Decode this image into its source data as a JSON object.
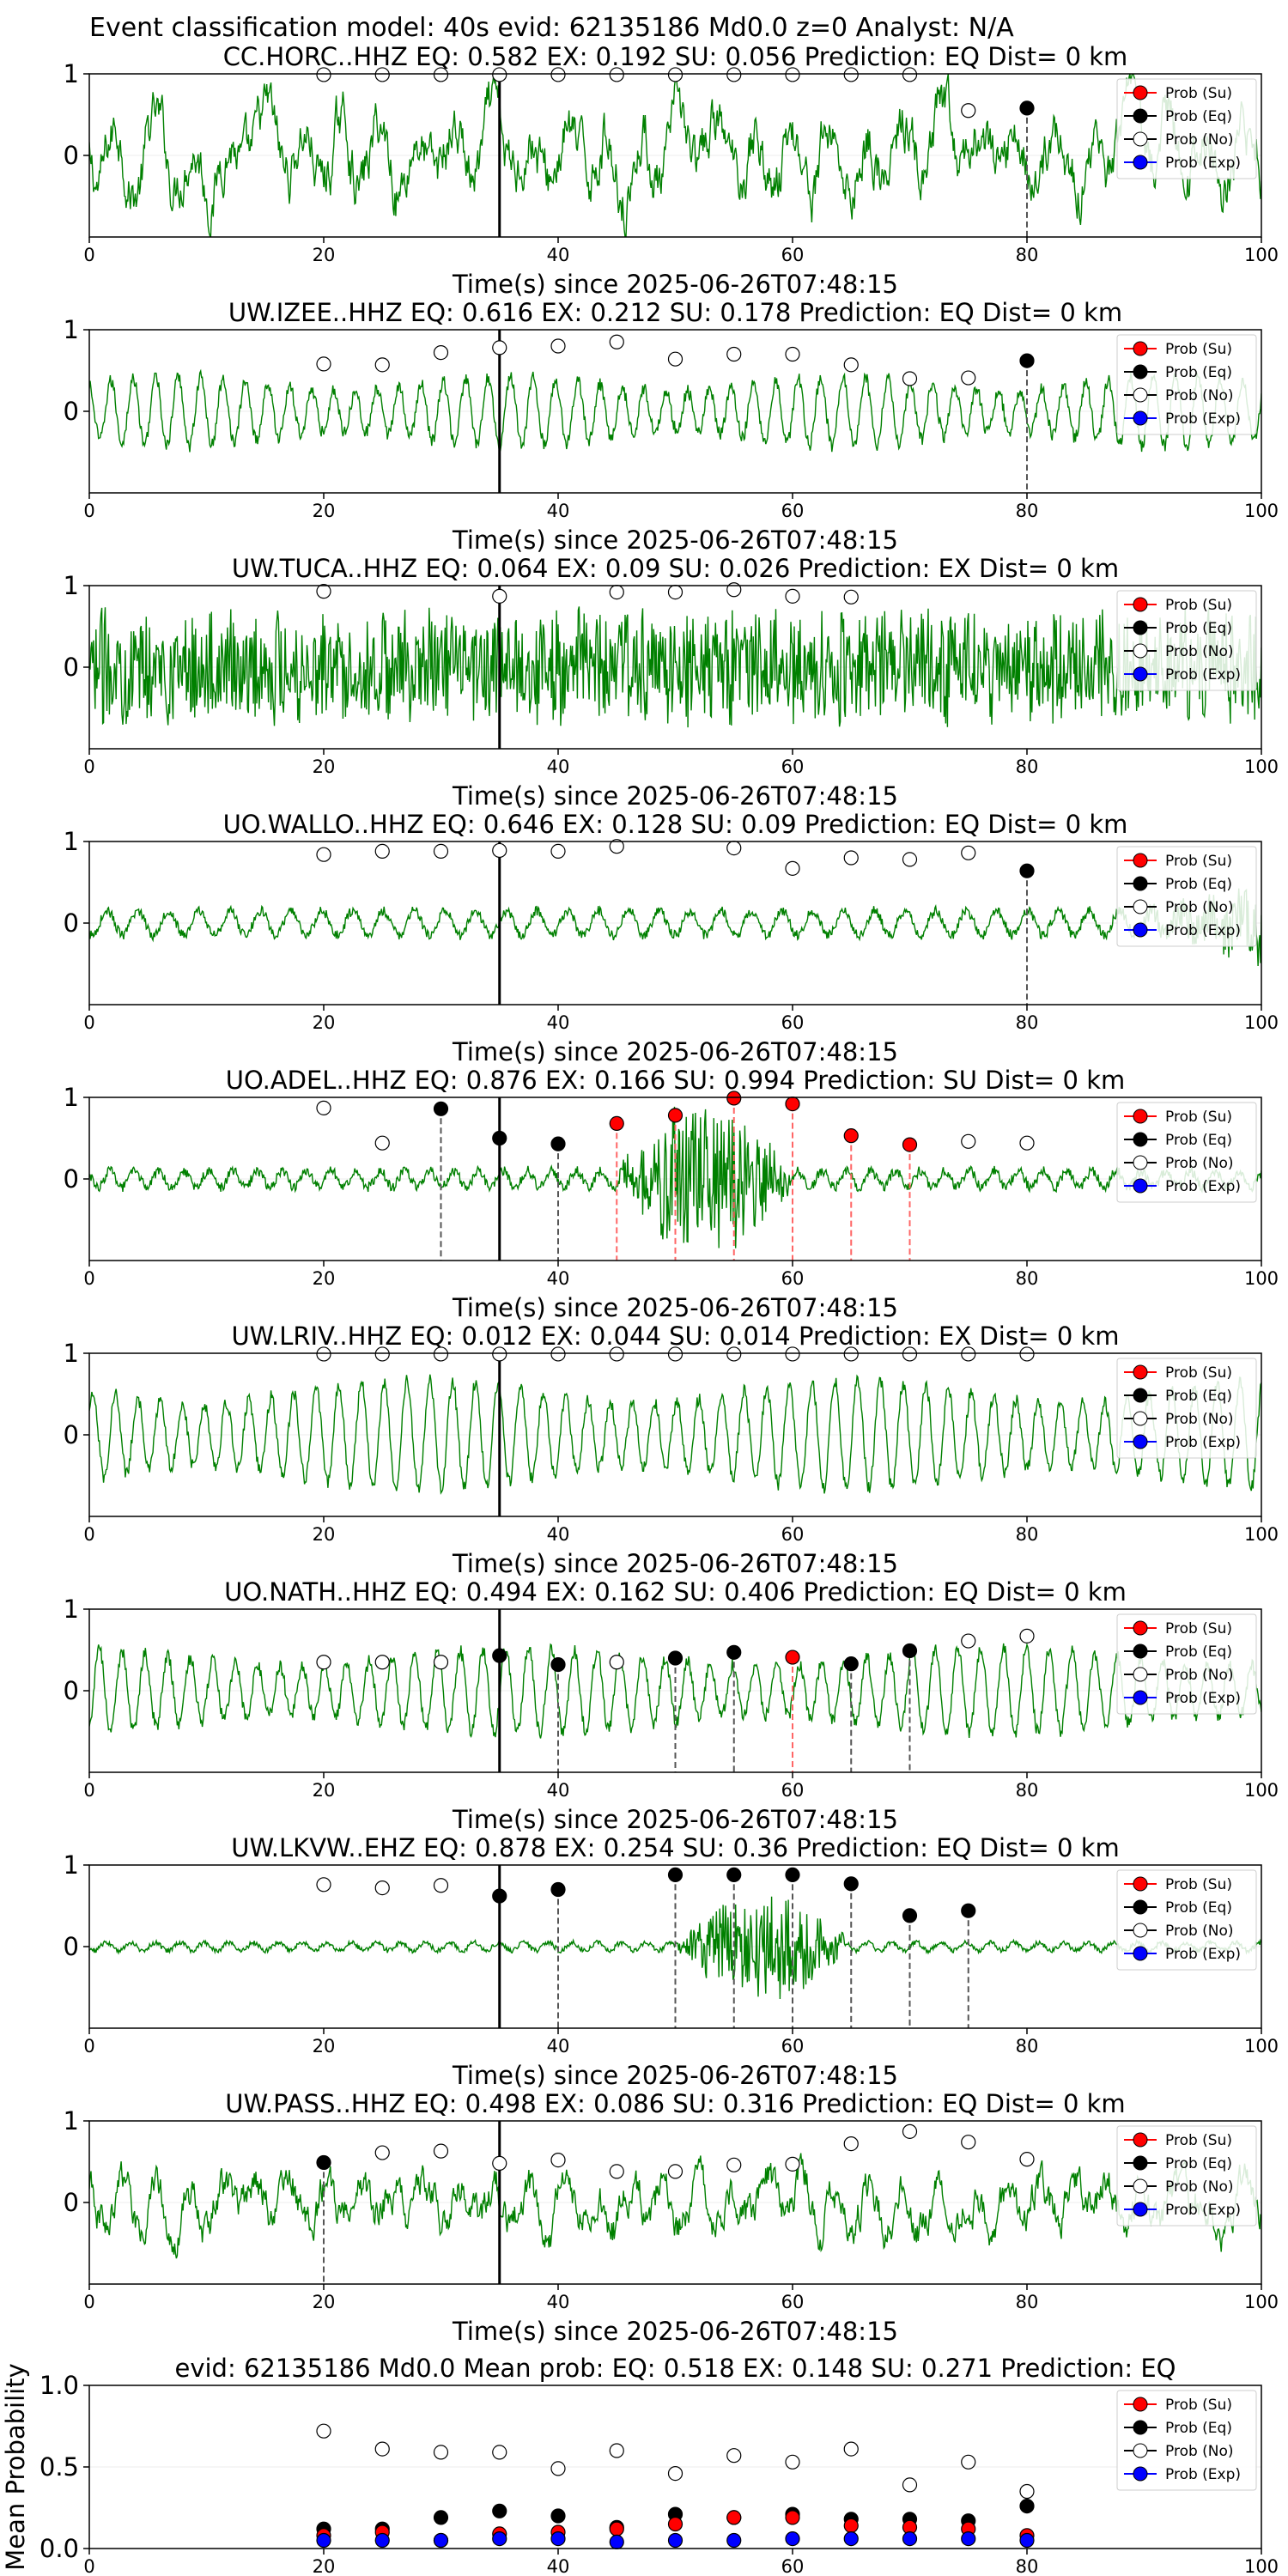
{
  "figure_title": "Event classification model: 40s evid: 62135186 Md0.0 z=0 Analyst: N/A",
  "colors": {
    "waveform": "#008000",
    "su": "#ff0000",
    "eq": "#000000",
    "no": "#ffffff",
    "exp": "#0000ff",
    "arrival_line": "#000000",
    "eq_tick": "#555555",
    "su_tick": "#ff6666"
  },
  "legend_labels": [
    "Prob (Su)",
    "Prob (Eq)",
    "Prob (No)",
    "Prob (Exp)"
  ],
  "chart_data": [
    {
      "type": "line",
      "title": "CC.HORC..HHZ   EQ: 0.582  EX: 0.192  SU: 0.056   Prediction: EQ    Dist= 0 km",
      "xlabel": "Time(s) since 2025-06-26T07:48:15",
      "xlim": [
        0,
        100
      ],
      "ylim": [
        -1,
        1
      ],
      "xticks": [
        0,
        20,
        40,
        60,
        80,
        100
      ],
      "yticks": [
        0,
        1
      ],
      "arrival_time": 35,
      "waveform": {
        "style": "noisy_low_freq",
        "amplitude": 0.55
      },
      "prob_no": [
        [
          20,
          0.99
        ],
        [
          25,
          0.99
        ],
        [
          30,
          0.99
        ],
        [
          35,
          0.99
        ],
        [
          40,
          0.99
        ],
        [
          45,
          0.99
        ],
        [
          50,
          0.99
        ],
        [
          55,
          0.99
        ],
        [
          60,
          0.99
        ],
        [
          65,
          0.99
        ],
        [
          70,
          0.99
        ],
        [
          75,
          0.55
        ]
      ],
      "prob_eq": [
        [
          80,
          0.58
        ]
      ],
      "prob_su": [],
      "legend_position": "upper right"
    },
    {
      "type": "line",
      "title": "UW.IZEE..HHZ   EQ: 0.616  EX: 0.212  SU: 0.178   Prediction: EQ    Dist= 0 km",
      "xlabel": "Time(s) since 2025-06-26T07:48:15",
      "xlim": [
        0,
        100
      ],
      "ylim": [
        -1,
        1
      ],
      "xticks": [
        0,
        20,
        40,
        60,
        80,
        100
      ],
      "yticks": [
        0,
        1
      ],
      "arrival_time": 35,
      "waveform": {
        "style": "oscillating",
        "amplitude": 0.45
      },
      "prob_no": [
        [
          20,
          0.58
        ],
        [
          25,
          0.57
        ],
        [
          30,
          0.72
        ],
        [
          35,
          0.78
        ],
        [
          40,
          0.8
        ],
        [
          45,
          0.85
        ],
        [
          50,
          0.64
        ],
        [
          55,
          0.7
        ],
        [
          60,
          0.7
        ],
        [
          65,
          0.57
        ],
        [
          70,
          0.4
        ],
        [
          75,
          0.41
        ]
      ],
      "prob_eq": [
        [
          80,
          0.62
        ]
      ],
      "prob_su": [],
      "legend_position": "upper right"
    },
    {
      "type": "line",
      "title": "UW.TUCA..HHZ   EQ: 0.064  EX: 0.09  SU: 0.026   Prediction: EX    Dist= 0 km",
      "xlabel": "Time(s) since 2025-06-26T07:48:15",
      "xlim": [
        0,
        100
      ],
      "ylim": [
        -1,
        1
      ],
      "xticks": [
        0,
        20,
        40,
        60,
        80,
        100
      ],
      "yticks": [
        0,
        1
      ],
      "arrival_time": 35,
      "waveform": {
        "style": "dense_noise",
        "amplitude": 0.75
      },
      "prob_no": [
        [
          20,
          0.93
        ],
        [
          35,
          0.87
        ],
        [
          45,
          0.92
        ],
        [
          50,
          0.92
        ],
        [
          55,
          0.95
        ],
        [
          60,
          0.87
        ],
        [
          65,
          0.86
        ]
      ],
      "prob_eq": [],
      "prob_su": [],
      "legend_position": "upper right"
    },
    {
      "type": "line",
      "title": "UO.WALLO..HHZ   EQ: 0.646  EX: 0.128  SU: 0.09   Prediction: EQ    Dist= 0 km",
      "xlabel": "Time(s) since 2025-06-26T07:48:15",
      "xlim": [
        0,
        100
      ],
      "ylim": [
        -1,
        1
      ],
      "xticks": [
        0,
        20,
        40,
        60,
        80,
        100
      ],
      "yticks": [
        0,
        1
      ],
      "arrival_time": 35,
      "waveform": {
        "style": "low_amp",
        "amplitude": 0.15
      },
      "prob_no": [
        [
          20,
          0.84
        ],
        [
          25,
          0.88
        ],
        [
          30,
          0.88
        ],
        [
          35,
          0.89
        ],
        [
          40,
          0.88
        ],
        [
          45,
          0.94
        ],
        [
          55,
          0.92
        ],
        [
          60,
          0.67
        ],
        [
          65,
          0.8
        ],
        [
          70,
          0.78
        ],
        [
          75,
          0.86
        ]
      ],
      "prob_eq": [
        [
          80,
          0.64
        ]
      ],
      "prob_su": [],
      "legend_position": "upper right"
    },
    {
      "type": "line",
      "title": "UO.ADEL..HHZ   EQ: 0.876  EX: 0.166  SU: 0.994   Prediction: SU    Dist= 0 km",
      "xlabel": "Time(s) since 2025-06-26T07:48:15",
      "xlim": [
        0,
        100
      ],
      "ylim": [
        -1,
        1
      ],
      "xticks": [
        0,
        20,
        40,
        60,
        80,
        100
      ],
      "yticks": [
        0,
        1
      ],
      "arrival_time": 35,
      "waveform": {
        "style": "burst",
        "amplitude": 0.1,
        "burst": [
          45,
          60,
          0.85
        ]
      },
      "prob_no": [
        [
          20,
          0.87
        ],
        [
          25,
          0.44
        ],
        [
          75,
          0.46
        ],
        [
          80,
          0.44
        ]
      ],
      "prob_eq": [
        [
          30,
          0.86
        ],
        [
          35,
          0.5
        ],
        [
          40,
          0.43
        ]
      ],
      "prob_su": [
        [
          45,
          0.68
        ],
        [
          50,
          0.78
        ],
        [
          55,
          0.99
        ],
        [
          60,
          0.92
        ],
        [
          65,
          0.53
        ],
        [
          70,
          0.42
        ]
      ],
      "legend_position": "upper right"
    },
    {
      "type": "line",
      "title": "UW.LRIV..HHZ   EQ: 0.012  EX: 0.044  SU: 0.014   Prediction: EX    Dist= 0 km",
      "xlabel": "Time(s) since 2025-06-26T07:48:15",
      "xlim": [
        0,
        100
      ],
      "ylim": [
        -1,
        1
      ],
      "xticks": [
        0,
        20,
        40,
        60,
        80,
        100
      ],
      "yticks": [
        0,
        1
      ],
      "arrival_time": 35,
      "waveform": {
        "style": "oscillating",
        "amplitude": 0.7
      },
      "prob_no": [
        [
          20,
          0.99
        ],
        [
          25,
          0.99
        ],
        [
          30,
          0.99
        ],
        [
          35,
          0.99
        ],
        [
          40,
          0.99
        ],
        [
          45,
          0.99
        ],
        [
          50,
          0.99
        ],
        [
          55,
          0.99
        ],
        [
          60,
          0.99
        ],
        [
          65,
          0.99
        ],
        [
          70,
          0.99
        ],
        [
          75,
          0.99
        ],
        [
          80,
          0.99
        ]
      ],
      "prob_eq": [],
      "prob_su": [],
      "legend_position": "upper right"
    },
    {
      "type": "line",
      "title": "UO.NATH..HHZ   EQ: 0.494  EX: 0.162  SU: 0.406   Prediction: EQ    Dist= 0 km",
      "xlabel": "Time(s) since 2025-06-26T07:48:15",
      "xlim": [
        0,
        100
      ],
      "ylim": [
        -1,
        1
      ],
      "xticks": [
        0,
        20,
        40,
        60,
        80,
        100
      ],
      "yticks": [
        0,
        1
      ],
      "arrival_time": 35,
      "waveform": {
        "style": "oscillating",
        "amplitude": 0.55
      },
      "prob_no": [
        [
          20,
          0.35
        ],
        [
          25,
          0.35
        ],
        [
          30,
          0.35
        ],
        [
          45,
          0.35
        ],
        [
          75,
          0.61
        ],
        [
          80,
          0.67
        ]
      ],
      "prob_eq": [
        [
          35,
          0.43
        ],
        [
          40,
          0.32
        ],
        [
          50,
          0.4
        ],
        [
          55,
          0.47
        ],
        [
          65,
          0.33
        ],
        [
          70,
          0.49
        ]
      ],
      "prob_su": [
        [
          60,
          0.41
        ]
      ],
      "legend_position": "upper right"
    },
    {
      "type": "line",
      "title": "UW.LKVW..EHZ   EQ: 0.878  EX: 0.254  SU: 0.36   Prediction: EQ    Dist= 0 km",
      "xlabel": "Time(s) since 2025-06-26T07:48:15",
      "xlim": [
        0,
        100
      ],
      "ylim": [
        -1,
        1
      ],
      "xticks": [
        0,
        20,
        40,
        60,
        80,
        100
      ],
      "yticks": [
        0,
        1
      ],
      "arrival_time": 35,
      "waveform": {
        "style": "burst",
        "amplitude": 0.05,
        "burst": [
          50,
          65,
          0.6
        ]
      },
      "prob_no": [
        [
          20,
          0.76
        ],
        [
          25,
          0.72
        ],
        [
          30,
          0.75
        ]
      ],
      "prob_eq": [
        [
          35,
          0.62
        ],
        [
          40,
          0.7
        ],
        [
          50,
          0.88
        ],
        [
          55,
          0.88
        ],
        [
          60,
          0.88
        ],
        [
          65,
          0.77
        ],
        [
          70,
          0.38
        ],
        [
          75,
          0.44
        ]
      ],
      "prob_su": [],
      "legend_position": "upper right"
    },
    {
      "type": "line",
      "title": "UW.PASS..HHZ   EQ: 0.498  EX: 0.086  SU: 0.316   Prediction: EQ    Dist= 0 km",
      "xlabel": "Time(s) since 2025-06-26T07:48:15",
      "xlim": [
        0,
        100
      ],
      "ylim": [
        -1,
        1
      ],
      "xticks": [
        0,
        20,
        40,
        60,
        80,
        100
      ],
      "yticks": [
        0,
        1
      ],
      "arrival_time": 35,
      "waveform": {
        "style": "noisy_low_freq",
        "amplitude": 0.35
      },
      "prob_no": [
        [
          25,
          0.61
        ],
        [
          30,
          0.63
        ],
        [
          35,
          0.48
        ],
        [
          40,
          0.52
        ],
        [
          45,
          0.38
        ],
        [
          50,
          0.38
        ],
        [
          55,
          0.46
        ],
        [
          60,
          0.47
        ],
        [
          65,
          0.72
        ],
        [
          70,
          0.87
        ],
        [
          75,
          0.74
        ],
        [
          80,
          0.53
        ]
      ],
      "prob_eq": [
        [
          20,
          0.49
        ]
      ],
      "prob_su": [],
      "legend_position": "upper right"
    },
    {
      "type": "scatter",
      "title": "evid: 62135186  Md0.0   Mean prob:    EQ: 0.518  EX: 0.148  SU: 0.271   Prediction: EQ",
      "ylabel": "Mean Probability",
      "xlim": [
        0,
        100
      ],
      "ylim": [
        0,
        1
      ],
      "xticks": [
        0,
        20,
        40,
        60,
        80,
        100
      ],
      "yticks": [
        0.0,
        0.5,
        1.0
      ],
      "ytick_labels": [
        "0.0",
        "0.5",
        "1.0"
      ],
      "series": [
        {
          "name": "Prob (No)",
          "points": [
            [
              20,
              0.72
            ],
            [
              25,
              0.61
            ],
            [
              30,
              0.59
            ],
            [
              35,
              0.59
            ],
            [
              40,
              0.49
            ],
            [
              45,
              0.6
            ],
            [
              50,
              0.46
            ],
            [
              55,
              0.57
            ],
            [
              60,
              0.53
            ],
            [
              65,
              0.61
            ],
            [
              70,
              0.39
            ],
            [
              75,
              0.53
            ],
            [
              80,
              0.35
            ]
          ]
        },
        {
          "name": "Prob (Eq)",
          "points": [
            [
              20,
              0.12
            ],
            [
              25,
              0.12
            ],
            [
              30,
              0.19
            ],
            [
              35,
              0.23
            ],
            [
              40,
              0.2
            ],
            [
              45,
              0.13
            ],
            [
              50,
              0.21
            ],
            [
              55,
              0.19
            ],
            [
              60,
              0.21
            ],
            [
              65,
              0.18
            ],
            [
              70,
              0.18
            ],
            [
              75,
              0.17
            ],
            [
              80,
              0.26
            ]
          ]
        },
        {
          "name": "Prob (Su)",
          "points": [
            [
              20,
              0.08
            ],
            [
              25,
              0.1
            ],
            [
              30,
              0.05
            ],
            [
              35,
              0.09
            ],
            [
              40,
              0.1
            ],
            [
              45,
              0.12
            ],
            [
              50,
              0.15
            ],
            [
              55,
              0.19
            ],
            [
              60,
              0.19
            ],
            [
              65,
              0.14
            ],
            [
              70,
              0.13
            ],
            [
              75,
              0.12
            ],
            [
              80,
              0.08
            ]
          ]
        },
        {
          "name": "Prob (Exp)",
          "points": [
            [
              20,
              0.05
            ],
            [
              25,
              0.05
            ],
            [
              30,
              0.05
            ],
            [
              35,
              0.06
            ],
            [
              40,
              0.06
            ],
            [
              45,
              0.04
            ],
            [
              50,
              0.05
            ],
            [
              55,
              0.05
            ],
            [
              60,
              0.06
            ],
            [
              65,
              0.06
            ],
            [
              70,
              0.06
            ],
            [
              75,
              0.06
            ],
            [
              80,
              0.05
            ]
          ]
        }
      ],
      "legend_position": "upper right"
    }
  ]
}
